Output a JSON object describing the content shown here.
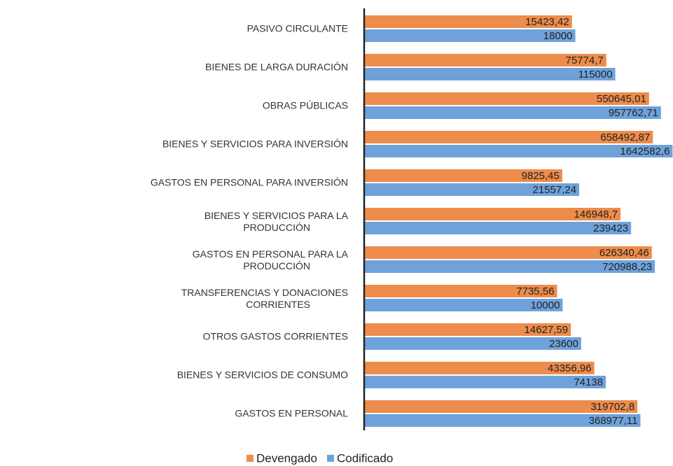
{
  "chart_data": {
    "type": "bar",
    "orientation": "horizontal",
    "log_scale": true,
    "xlim": [
      1,
      10000000
    ],
    "categories": [
      "PASIVO CIRCULANTE",
      "BIENES DE LARGA DURACIÓN",
      "OBRAS PÚBLICAS",
      "BIENES Y SERVICIOS PARA INVERSIÓN",
      "GASTOS EN PERSONAL PARA INVERSIÓN",
      "BIENES Y SERVICIOS PARA LA PRODUCCIÓN",
      "GASTOS EN PERSONAL PARA LA PRODUCCIÓN",
      "TRANSFERENCIAS Y DONACIONES CORRIENTES",
      "OTROS GASTOS CORRIENTES",
      "BIENES Y SERVICIOS DE CONSUMO",
      "GASTOS EN PERSONAL"
    ],
    "series": [
      {
        "name": "Devengado",
        "color": "#ed8c4b",
        "values": [
          15423.42,
          75774.7,
          550645.01,
          658492.87,
          9825.45,
          146948.7,
          626340.46,
          7735.56,
          14627.59,
          43356.96,
          319702.8
        ],
        "value_labels": [
          "15423,42",
          "75774,7",
          "550645,01",
          "658492,87",
          "9825,45",
          "146948,7",
          "626340,46",
          "7735,56",
          "14627,59",
          "43356,96",
          "319702,8"
        ]
      },
      {
        "name": "Codificado",
        "color": "#6fa2db",
        "values": [
          18000,
          115000,
          957762.71,
          1642582.6,
          21557.24,
          239423,
          720988.23,
          10000,
          23600,
          74138,
          368977.11
        ],
        "value_labels": [
          "18000",
          "115000",
          "957762,71",
          "1642582,6",
          "21557,24",
          "239423",
          "720988,23",
          "10000",
          "23600",
          "74138",
          "368977,11"
        ]
      }
    ],
    "legend": "bottom"
  }
}
